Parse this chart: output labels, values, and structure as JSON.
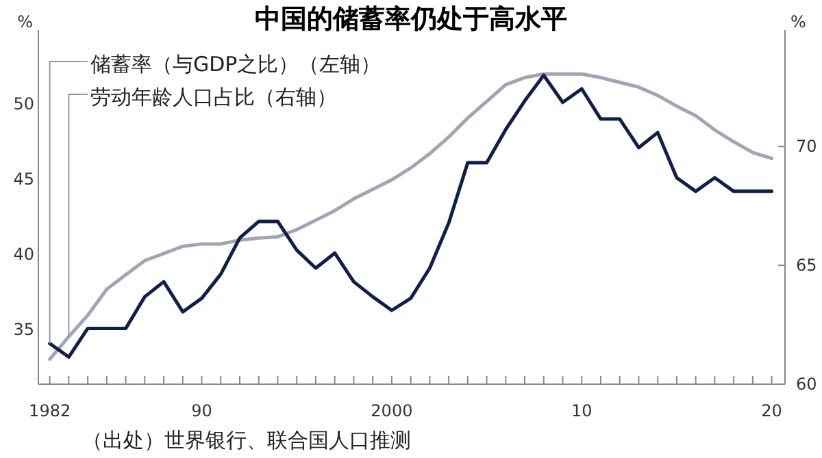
{
  "chart_data": {
    "type": "line",
    "title": "中国的储蓄率仍处于高水平",
    "ylabel": "%",
    "y2label": "%",
    "x": [
      1982,
      1983,
      1984,
      1985,
      1986,
      1987,
      1988,
      1989,
      1990,
      1991,
      1992,
      1993,
      1994,
      1995,
      1996,
      1997,
      1998,
      1999,
      2000,
      2001,
      2002,
      2003,
      2004,
      2005,
      2006,
      2007,
      2008,
      2009,
      2010,
      2011,
      2012,
      2013,
      2014,
      2015,
      2016,
      2017,
      2018,
      2019,
      2020
    ],
    "series": [
      {
        "name": "储蓄率（与GDP之比）（左轴）",
        "color": "#0d1f4f",
        "values": [
          34.1,
          33.2,
          35.1,
          35.1,
          35.1,
          37.2,
          38.2,
          36.2,
          37.1,
          38.7,
          41.1,
          42.2,
          42.2,
          40.3,
          39.1,
          40.1,
          38.2,
          37.2,
          36.3,
          37.1,
          39.1,
          42.1,
          46.1,
          46.1,
          48.3,
          50.2,
          51.9,
          50.1,
          51.0,
          49.0,
          49.0,
          47.1,
          48.1,
          45.1,
          44.2,
          45.1,
          44.2,
          44.2,
          44.2
        ]
      },
      {
        "name": "劳动年龄人口占比（右轴）",
        "color": "#a3a3b8",
        "axis": "y2",
        "values": [
          61.05,
          62.0,
          62.9,
          64.0,
          64.6,
          65.2,
          65.5,
          65.8,
          65.9,
          65.9,
          66.06,
          66.15,
          66.2,
          66.5,
          66.9,
          67.3,
          67.8,
          68.2,
          68.6,
          69.1,
          69.7,
          70.4,
          71.2,
          71.9,
          72.6,
          72.9,
          73.05,
          73.05,
          73.05,
          72.9,
          72.7,
          72.5,
          72.15,
          71.7,
          71.3,
          70.7,
          70.2,
          69.75,
          69.5
        ]
      }
    ],
    "xlim": [
      1981.4,
      2020.7
    ],
    "xticks": [
      {
        "value": 1982,
        "label": "1982"
      },
      {
        "value": 1983,
        "label": null
      },
      {
        "value": 1984,
        "label": null
      },
      {
        "value": 1985,
        "label": null
      },
      {
        "value": 1986,
        "label": null
      },
      {
        "value": 1987,
        "label": null
      },
      {
        "value": 1988,
        "label": null
      },
      {
        "value": 1989,
        "label": null
      },
      {
        "value": 1990,
        "label": "90"
      },
      {
        "value": 1991,
        "label": null
      },
      {
        "value": 1992,
        "label": null
      },
      {
        "value": 1993,
        "label": null
      },
      {
        "value": 1994,
        "label": null
      },
      {
        "value": 1995,
        "label": null
      },
      {
        "value": 1996,
        "label": null
      },
      {
        "value": 1997,
        "label": null
      },
      {
        "value": 1998,
        "label": null
      },
      {
        "value": 1999,
        "label": null
      },
      {
        "value": 2000,
        "label": "2000"
      },
      {
        "value": 2001,
        "label": null
      },
      {
        "value": 2002,
        "label": null
      },
      {
        "value": 2003,
        "label": null
      },
      {
        "value": 2004,
        "label": null
      },
      {
        "value": 2005,
        "label": null
      },
      {
        "value": 2006,
        "label": null
      },
      {
        "value": 2007,
        "label": null
      },
      {
        "value": 2008,
        "label": null
      },
      {
        "value": 2009,
        "label": null
      },
      {
        "value": 2010,
        "label": "10"
      },
      {
        "value": 2011,
        "label": null
      },
      {
        "value": 2012,
        "label": null
      },
      {
        "value": 2013,
        "label": null
      },
      {
        "value": 2014,
        "label": null
      },
      {
        "value": 2015,
        "label": null
      },
      {
        "value": 2016,
        "label": null
      },
      {
        "value": 2017,
        "label": null
      },
      {
        "value": 2018,
        "label": null
      },
      {
        "value": 2019,
        "label": null
      },
      {
        "value": 2020,
        "label": "20"
      }
    ],
    "ylim": [
      31.4,
      54.9
    ],
    "yticks": [
      35,
      40,
      45,
      50
    ],
    "y2lim": [
      60,
      74.9
    ],
    "y2ticks": [
      60,
      65,
      70
    ],
    "legend": "top left",
    "annotations": [
      "（出处）世界银行、联合国人口推测"
    ]
  }
}
